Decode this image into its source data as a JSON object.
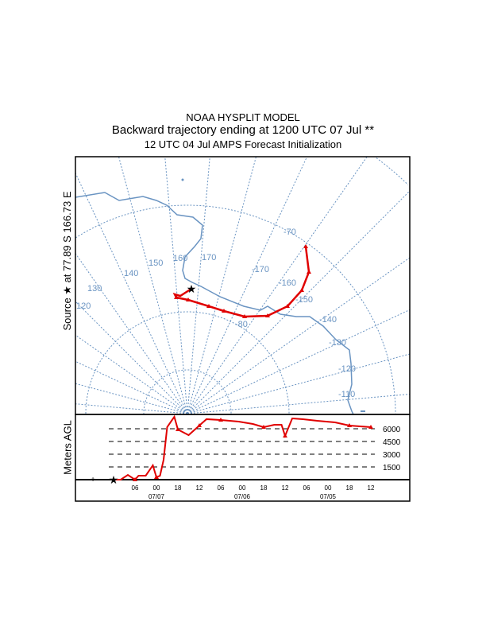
{
  "header": {
    "line1": "NOAA HYSPLIT MODEL",
    "line2": "Backward trajectory ending at 1200 UTC 07 Jul **",
    "line3": "12 UTC 04 Jul    AMPS  Forecast Initialization"
  },
  "side_labels": {
    "source": "Source ★ at  77.89 S  166.73 E",
    "meters": "Meters AGL"
  },
  "map": {
    "longitude_labels": [
      "120",
      "130",
      "140",
      "150",
      "160",
      "170",
      "-170",
      "-160",
      "-150",
      "-140",
      "-130",
      "-120",
      "-110"
    ],
    "latitude_labels": [
      "-70",
      "-80"
    ],
    "colors": {
      "grid": "#6a94c2",
      "trajectory": "#e00000"
    }
  },
  "chart_data": {
    "type": "line",
    "title": "Backward trajectory ending at 1200 UTC 07 Jul",
    "ylabel": "Meters AGL",
    "y_ticks": [
      1500,
      3000,
      4500,
      6000
    ],
    "ylim": [
      0,
      7500
    ],
    "x_ticks": [
      "06",
      "00",
      "18",
      "12",
      "06",
      "00",
      "18",
      "12",
      "06",
      "00",
      "18",
      "12"
    ],
    "x_dates": [
      "07/07",
      "07/06",
      "07/05"
    ],
    "series": [
      {
        "name": "trajectory",
        "hours_back": [
          0,
          2,
          4,
          6,
          7,
          9,
          11,
          12,
          13,
          14,
          15,
          17,
          18,
          21,
          24,
          26,
          30,
          35,
          39,
          42,
          45,
          47,
          48,
          50,
          53,
          57,
          62,
          66,
          72
        ],
        "altitude_m": [
          0,
          0,
          560,
          0,
          470,
          470,
          1690,
          280,
          470,
          2340,
          6190,
          7410,
          5910,
          5250,
          6380,
          7130,
          7030,
          6840,
          6560,
          6190,
          6470,
          6470,
          5160,
          7220,
          7130,
          6940,
          6750,
          6380,
          6190
        ]
      }
    ]
  }
}
